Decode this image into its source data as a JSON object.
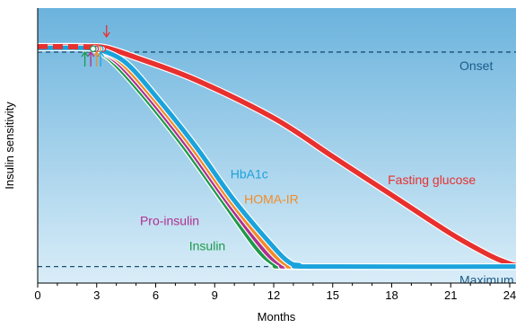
{
  "chart_data": {
    "type": "line",
    "xlabel": "Months",
    "ylabel": "Insulin sensitivity",
    "xlim": [
      0,
      24.3
    ],
    "ylim": [
      0,
      1
    ],
    "xticks": [
      0,
      3,
      6,
      9,
      12,
      15,
      18,
      21,
      24
    ],
    "grid": false,
    "reference_lines": [
      {
        "label": "Onset",
        "y": 0.84
      },
      {
        "label": "Maximum",
        "y": 0.06
      }
    ],
    "series": [
      {
        "name": "Fasting glucose",
        "color": "#e8302e",
        "x": [
          0,
          2.5,
          3.5,
          5,
          8,
          12,
          15,
          18,
          21,
          23,
          24,
          24.3
        ],
        "y": [
          0.86,
          0.86,
          0.855,
          0.82,
          0.74,
          0.6,
          0.46,
          0.32,
          0.18,
          0.1,
          0.07,
          0.065
        ]
      },
      {
        "name": "HbA1c",
        "color": "#1aa3dc",
        "x": [
          0,
          2.5,
          3.3,
          4.5,
          6,
          8,
          10,
          12,
          12.8,
          13.3,
          14,
          24.3
        ],
        "y": [
          0.855,
          0.855,
          0.845,
          0.8,
          0.68,
          0.5,
          0.3,
          0.13,
          0.075,
          0.065,
          0.06,
          0.06
        ]
      },
      {
        "name": "HOMA-IR",
        "color": "#f28c28",
        "x": [
          0,
          2.4,
          3.2,
          4.3,
          5.8,
          7.8,
          9.8,
          11.7,
          12.5,
          13,
          13.7,
          24.3
        ],
        "y": [
          0.855,
          0.855,
          0.845,
          0.8,
          0.68,
          0.5,
          0.3,
          0.13,
          0.075,
          0.065,
          0.06,
          0.06
        ]
      },
      {
        "name": "Pro-insulin",
        "color": "#b0308f",
        "x": [
          0,
          2.3,
          3.1,
          4.1,
          5.6,
          7.6,
          9.6,
          11.4,
          12.2,
          12.7,
          13.4,
          24.3
        ],
        "y": [
          0.855,
          0.855,
          0.845,
          0.8,
          0.68,
          0.5,
          0.3,
          0.13,
          0.075,
          0.065,
          0.06,
          0.06
        ]
      },
      {
        "name": "Insulin",
        "color": "#1c9a4a",
        "x": [
          0,
          2.2,
          3,
          3.9,
          5.4,
          7.4,
          9.4,
          11.1,
          11.9,
          12.4,
          13.1,
          24.3
        ],
        "y": [
          0.855,
          0.855,
          0.845,
          0.8,
          0.68,
          0.5,
          0.3,
          0.13,
          0.075,
          0.065,
          0.06,
          0.06
        ]
      }
    ],
    "annotations": [
      {
        "text": "HbA1c",
        "x": 9.8,
        "y": 0.38,
        "color": "#1aa3dc"
      },
      {
        "text": "HOMA-IR",
        "x": 10.5,
        "y": 0.29,
        "color": "#f28c28"
      },
      {
        "text": "Pro-insulin",
        "x": 5.2,
        "y": 0.21,
        "color": "#b0308f"
      },
      {
        "text": "Insulin",
        "x": 7.7,
        "y": 0.12,
        "color": "#1c9a4a"
      },
      {
        "text": "Fasting glucose",
        "x": 17.8,
        "y": 0.36,
        "color": "#e8302e"
      }
    ],
    "arrows": [
      {
        "color": "#e8302e",
        "x": 3.5,
        "direction": "down"
      },
      {
        "color": "#1aa3dc",
        "x": 3.2,
        "direction": "up"
      },
      {
        "color": "#f28c28",
        "x": 3.0,
        "direction": "up"
      },
      {
        "color": "#b0308f",
        "x": 2.7,
        "direction": "up"
      },
      {
        "color": "#1c9a4a",
        "x": 2.4,
        "direction": "up"
      }
    ]
  }
}
